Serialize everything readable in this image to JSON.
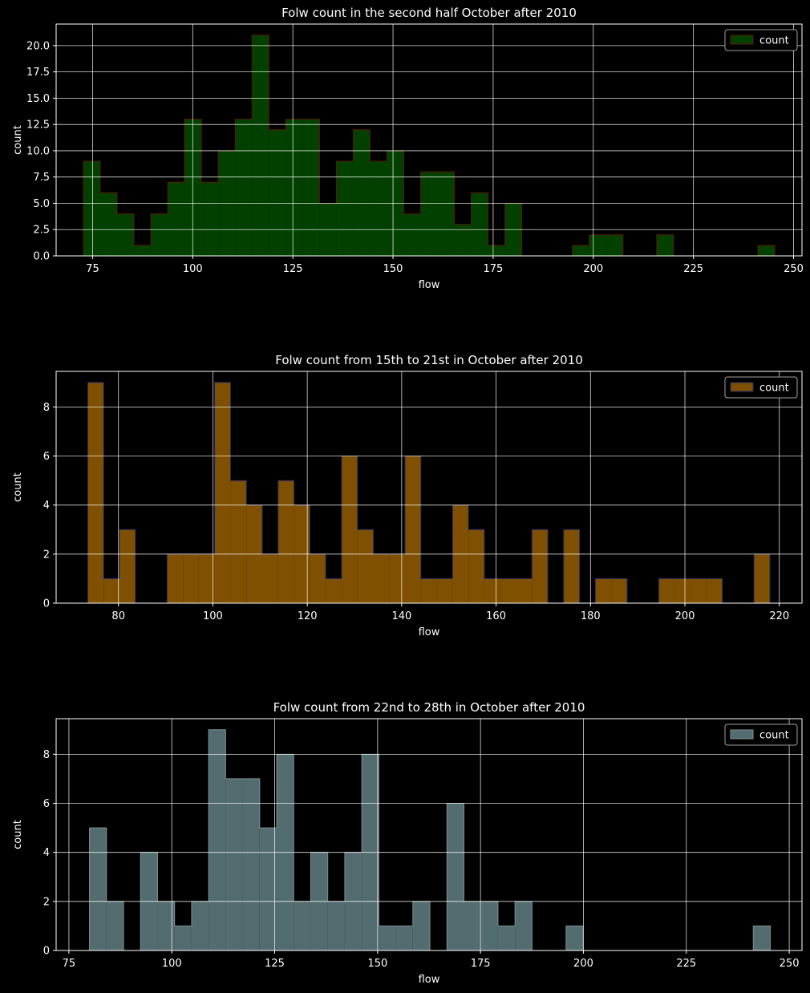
{
  "chart_data": [
    {
      "type": "bar",
      "title": "Folw count in the second half October after 2010",
      "xlabel": "flow",
      "ylabel": "count",
      "legend": {
        "label": "count",
        "position": "top-right"
      },
      "xlim": [
        65.9,
        252.1
      ],
      "ylim": [
        0,
        22.05
      ],
      "xticks": [
        75,
        100,
        125,
        150,
        175,
        200,
        225,
        250
      ],
      "yticks": [
        0.0,
        2.5,
        5.0,
        7.5,
        10.0,
        12.5,
        15.0,
        17.5,
        20.0
      ],
      "ytick_labels": [
        "0.0",
        "2.5",
        "5.0",
        "7.5",
        "10.0",
        "12.5",
        "15.0",
        "17.5",
        "20.0"
      ],
      "grid": true,
      "fill_color": "#024000",
      "edge_color": "#5a1a00",
      "bin_start": 72.7,
      "bin_end": 245.3,
      "counts": [
        9,
        6,
        4,
        1,
        4,
        7,
        13,
        7,
        10,
        13,
        21,
        12,
        13,
        13,
        5,
        9,
        12,
        9,
        10,
        4,
        8,
        8,
        3,
        6,
        1,
        5,
        0,
        0,
        0,
        1,
        2,
        2,
        0,
        0,
        2,
        0,
        0,
        0,
        0,
        0,
        1
      ]
    },
    {
      "type": "bar",
      "title": "Folw count from 15th to 21st in October after 2010",
      "xlabel": "flow",
      "ylabel": "count",
      "legend": {
        "label": "count",
        "position": "top-right"
      },
      "xlim": [
        66.8,
        224.8
      ],
      "ylim": [
        0,
        9.45
      ],
      "xticks": [
        80,
        100,
        120,
        140,
        160,
        180,
        200,
        220
      ],
      "yticks": [
        0,
        2,
        4,
        6,
        8
      ],
      "ytick_labels": [
        "0",
        "2",
        "4",
        "6",
        "8"
      ],
      "grid": true,
      "fill_color": "#7f5000",
      "edge_color": "#2a2a70",
      "bin_start": 73.5,
      "bin_end": 218.0,
      "counts": [
        9,
        1,
        3,
        0,
        0,
        2,
        2,
        2,
        9,
        5,
        4,
        2,
        5,
        4,
        2,
        1,
        6,
        3,
        2,
        2,
        6,
        1,
        1,
        4,
        3,
        1,
        1,
        1,
        3,
        0,
        3,
        0,
        1,
        1,
        0,
        0,
        1,
        1,
        1,
        1,
        0,
        0,
        2
      ]
    },
    {
      "type": "bar",
      "title": "Folw count from 22nd to 28th in October after 2010",
      "xlabel": "flow",
      "ylabel": "count",
      "legend": {
        "label": "count",
        "position": "top-right"
      },
      "xlim": [
        71.9,
        253.1
      ],
      "ylim": [
        0,
        9.45
      ],
      "xticks": [
        75,
        100,
        125,
        150,
        175,
        200,
        225,
        250
      ],
      "yticks": [
        0,
        2,
        4,
        6,
        8
      ],
      "ytick_labels": [
        "0",
        "2",
        "4",
        "6",
        "8"
      ],
      "grid": true,
      "fill_color": "#536c70",
      "edge_color": "#7f8f92",
      "bin_start": 80.0,
      "bin_end": 245.4,
      "counts": [
        5,
        2,
        0,
        4,
        2,
        1,
        2,
        9,
        7,
        7,
        5,
        8,
        2,
        4,
        2,
        4,
        8,
        1,
        1,
        2,
        0,
        6,
        2,
        2,
        1,
        2,
        0,
        0,
        1,
        0,
        0,
        0,
        0,
        0,
        0,
        0,
        0,
        0,
        0,
        1
      ]
    }
  ]
}
